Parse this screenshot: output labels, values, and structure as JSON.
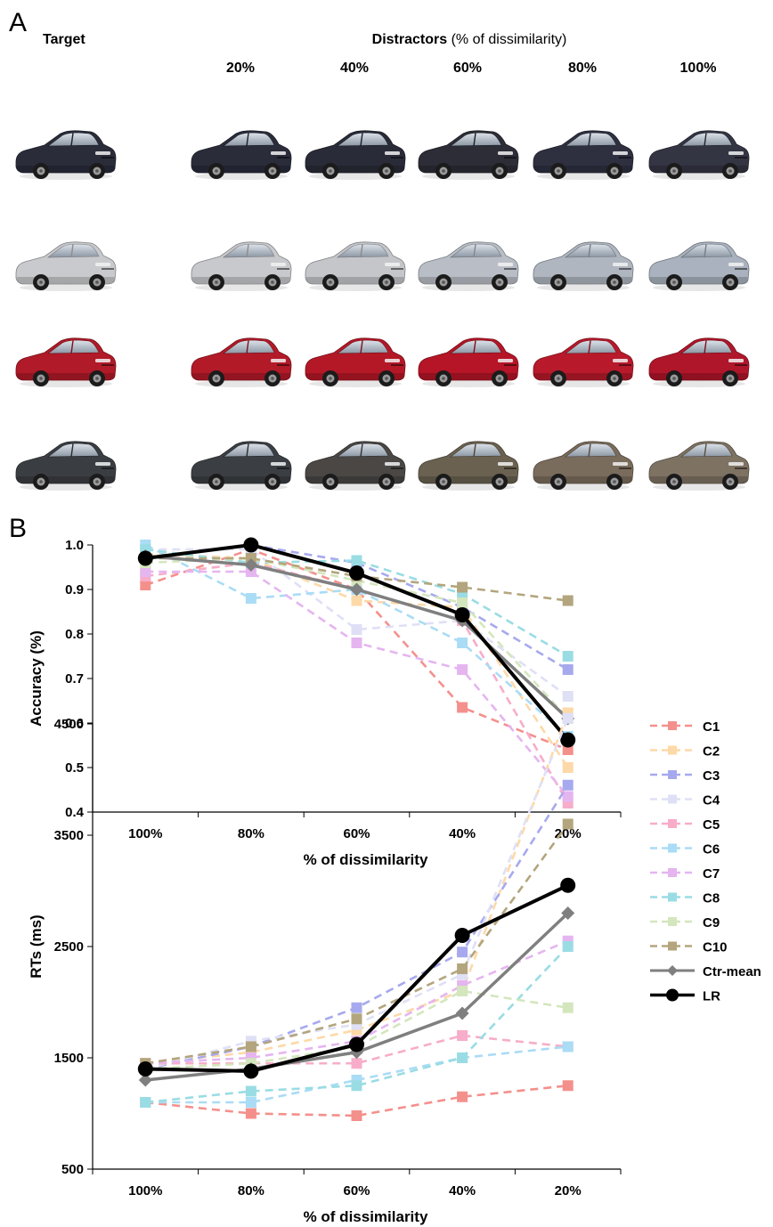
{
  "panelA": {
    "panel_label": "A",
    "target_header": "Target",
    "distractors_header_bold": "Distractors",
    "distractors_header_rest": " (% of dissimilarity)",
    "column_labels": [
      "20%",
      "40%",
      "60%",
      "80%",
      "100%"
    ],
    "rows": [
      {
        "target_color": "#2a2c3a",
        "distractor_colors": [
          "#2a2c3a",
          "#292b38",
          "#2c2d36",
          "#2e3040",
          "#333543"
        ]
      },
      {
        "target_color": "#c9cacd",
        "distractor_colors": [
          "#c8c9cc",
          "#c4c6ca",
          "#b9bec6",
          "#afb6c0",
          "#a9b2be"
        ]
      },
      {
        "target_color": "#b11a28",
        "distractor_colors": [
          "#b21a28",
          "#b41827",
          "#b51526",
          "#b81a2b",
          "#b0162a"
        ]
      },
      {
        "target_color": "#3a3e42",
        "distractor_colors": [
          "#3b3f43",
          "#4a4744",
          "#6a6150",
          "#7a6c5c",
          "#7e7262"
        ]
      }
    ]
  },
  "panelB": {
    "panel_label": "B"
  },
  "legend": [
    {
      "name": "C1",
      "color": "#f4908c",
      "marker": "square",
      "dashed": true
    },
    {
      "name": "C2",
      "color": "#fdd9a8",
      "marker": "square",
      "dashed": true
    },
    {
      "name": "C3",
      "color": "#a7a9ee",
      "marker": "square",
      "dashed": true
    },
    {
      "name": "C4",
      "color": "#dfe0f6",
      "marker": "square",
      "dashed": true
    },
    {
      "name": "C5",
      "color": "#f7adc9",
      "marker": "square",
      "dashed": true
    },
    {
      "name": "C6",
      "color": "#aadcf5",
      "marker": "square",
      "dashed": true
    },
    {
      "name": "C7",
      "color": "#e5b5f0",
      "marker": "square",
      "dashed": true
    },
    {
      "name": "C8",
      "color": "#9adce4",
      "marker": "square",
      "dashed": true
    },
    {
      "name": "C9",
      "color": "#d4e6bd",
      "marker": "square",
      "dashed": true
    },
    {
      "name": "C10",
      "color": "#b3a57d",
      "marker": "square",
      "dashed": true
    },
    {
      "name": "Ctr-mean",
      "color": "#7f7f7f",
      "marker": "diamond",
      "dashed": false
    },
    {
      "name": "LR",
      "color": "#000000",
      "marker": "circle",
      "dashed": false
    }
  ],
  "chart_data": [
    {
      "type": "line",
      "title": "",
      "xlabel": "% of dissimilarity",
      "ylabel": "Accuracy (%)",
      "categories": [
        "100%",
        "80%",
        "60%",
        "40%",
        "20%"
      ],
      "ylim": [
        0.4,
        1.0
      ],
      "yticks": [
        "0.4",
        "0.5",
        "0.6",
        "0.7",
        "0.8",
        "0.9",
        "1.0"
      ],
      "ytick_values": [
        0.4,
        0.5,
        0.6,
        0.7,
        0.8,
        0.9,
        1.0
      ],
      "grid": false,
      "series": [
        {
          "name": "C1",
          "values": [
            0.91,
            0.99,
            0.9,
            0.635,
            0.54
          ]
        },
        {
          "name": "C2",
          "values": [
            0.98,
            0.97,
            0.875,
            0.86,
            0.5
          ]
        },
        {
          "name": "C3",
          "values": [
            0.97,
            1.0,
            0.96,
            0.86,
            0.72
          ]
        },
        {
          "name": "C4",
          "values": [
            0.99,
            0.99,
            0.81,
            0.83,
            0.66
          ]
        },
        {
          "name": "C5",
          "values": [
            0.93,
            0.96,
            0.9,
            0.83,
            0.42
          ]
        },
        {
          "name": "C6",
          "values": [
            1.0,
            0.88,
            0.9,
            0.78,
            0.57
          ]
        },
        {
          "name": "C7",
          "values": [
            0.94,
            0.94,
            0.78,
            0.72,
            0.435
          ]
        },
        {
          "name": "C8",
          "values": [
            0.99,
            0.96,
            0.965,
            0.89,
            0.75
          ]
        },
        {
          "name": "C9",
          "values": [
            0.96,
            0.97,
            0.92,
            0.87,
            0.61
          ]
        },
        {
          "name": "C10",
          "values": [
            0.97,
            0.97,
            0.93,
            0.905,
            0.875
          ]
        },
        {
          "name": "Ctr-mean",
          "values": [
            0.975,
            0.955,
            0.9,
            0.83,
            0.61
          ]
        },
        {
          "name": "LR",
          "values": [
            0.97,
            1.0,
            0.937,
            0.843,
            0.562
          ]
        }
      ]
    },
    {
      "type": "line",
      "title": "",
      "xlabel": "% of dissimilarity",
      "ylabel": "RTs (ms)",
      "categories": [
        "100%",
        "80%",
        "60%",
        "40%",
        "20%"
      ],
      "ylim": [
        500,
        4500
      ],
      "yticks": [
        "500",
        "1500",
        "2500",
        "3500",
        "4500"
      ],
      "ytick_values": [
        500,
        1500,
        2500,
        3500,
        4500
      ],
      "grid": false,
      "series": [
        {
          "name": "C1",
          "values": [
            1100,
            1000,
            980,
            1150,
            1250
          ]
        },
        {
          "name": "C2",
          "values": [
            1450,
            1550,
            1750,
            2100,
            4600
          ]
        },
        {
          "name": "C3",
          "values": [
            1400,
            1600,
            1950,
            2450,
            3950
          ]
        },
        {
          "name": "C4",
          "values": [
            1400,
            1650,
            1800,
            2250,
            4550
          ]
        },
        {
          "name": "C5",
          "values": [
            1450,
            1450,
            1450,
            1700,
            1600
          ]
        },
        {
          "name": "C6",
          "values": [
            1100,
            1100,
            1300,
            1500,
            1600
          ]
        },
        {
          "name": "C7",
          "values": [
            1450,
            1500,
            1650,
            2150,
            2550
          ]
        },
        {
          "name": "C8",
          "values": [
            1100,
            1200,
            1250,
            1500,
            2500
          ]
        },
        {
          "name": "C9",
          "values": [
            1400,
            1450,
            1600,
            2100,
            1950
          ]
        },
        {
          "name": "C10",
          "values": [
            1450,
            1600,
            1850,
            2300,
            3600
          ]
        },
        {
          "name": "Ctr-mean",
          "values": [
            1300,
            1400,
            1550,
            1900,
            2800
          ]
        },
        {
          "name": "LR",
          "values": [
            1400,
            1380,
            1620,
            2600,
            3050
          ]
        }
      ]
    }
  ]
}
